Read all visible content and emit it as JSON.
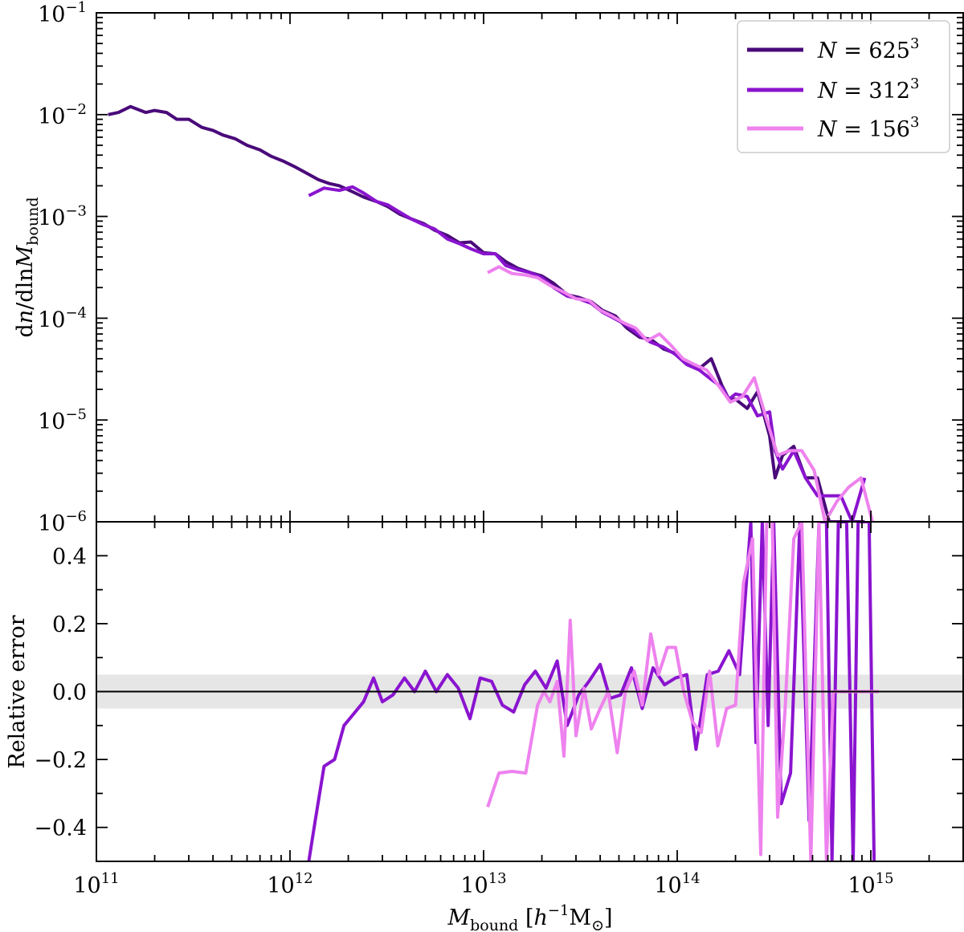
{
  "chart_data": [
    {
      "type": "line",
      "panel": "top",
      "ylabel_parts": [
        "d",
        "n",
        "/dln",
        "M",
        "bound"
      ],
      "xscale": "log",
      "yscale": "log",
      "xlim": [
        100000000000.0,
        3000000000000000.0
      ],
      "ylim": [
        1e-06,
        0.1
      ],
      "y_ticks": [
        {
          "base": "10",
          "exp": "−1"
        },
        {
          "base": "10",
          "exp": "−2"
        },
        {
          "base": "10",
          "exp": "−3"
        },
        {
          "base": "10",
          "exp": "−4"
        },
        {
          "base": "10",
          "exp": "−5"
        },
        {
          "base": "10",
          "exp": "−6"
        }
      ],
      "legend_position": "top-right",
      "series": [
        {
          "name_parts": [
            "N",
            " = 625",
            "3"
          ],
          "color": "#4a0a7a",
          "x": [
            115000000000.0,
            130000000000.0,
            150000000000.0,
            180000000000.0,
            200000000000.0,
            230000000000.0,
            260000000000.0,
            300000000000.0,
            350000000000.0,
            400000000000.0,
            450000000000.0,
            520000000000.0,
            600000000000.0,
            700000000000.0,
            800000000000.0,
            920000000000.0,
            1050000000000.0,
            1200000000000.0,
            1400000000000.0,
            1600000000000.0,
            1800000000000.0,
            2100000000000.0,
            2400000000000.0,
            2800000000000.0,
            3200000000000.0,
            3700000000000.0,
            4200000000000.0,
            4900000000000.0,
            5600000000000.0,
            6500000000000.0,
            7500000000000.0,
            8600000000000.0,
            10000000000000.0,
            11500000000000.0,
            13000000000000.0,
            15000000000000.0,
            17500000000000.0,
            20000000000000.0,
            23000000000000.0,
            27000000000000.0,
            31000000000000.0,
            36000000000000.0,
            41000000000000.0,
            48000000000000.0,
            55000000000000.0,
            64000000000000.0,
            73000000000000.0,
            85000000000000.0,
            98000000000000.0,
            112000000000000.0,
            130000000000000.0,
            150000000000000.0,
            170000000000000.0,
            185000000000000.0,
            200000000000000.0,
            230000000000000.0,
            260000000000000.0,
            300000000000000.0,
            320000000000000.0,
            350000000000000.0,
            400000000000000.0,
            460000000000000.0,
            530000000000000.0,
            610000000000000.0,
            700000000000000.0,
            800000000000000.0,
            930000000000000.0
          ],
          "y": [
            0.01,
            0.0105,
            0.012,
            0.0105,
            0.011,
            0.0105,
            0.009,
            0.009,
            0.0075,
            0.007,
            0.0063,
            0.0058,
            0.005,
            0.0045,
            0.0039,
            0.0035,
            0.0031,
            0.0027,
            0.0023,
            0.0021,
            0.002,
            0.00175,
            0.00155,
            0.0014,
            0.00125,
            0.00105,
            0.00095,
            0.00085,
            0.00073,
            0.00065,
            0.00055,
            0.00056,
            0.00044,
            0.00043,
            0.00036,
            0.00031,
            0.00028,
            0.00026,
            0.00022,
            0.00017,
            0.00016,
            0.000145,
            0.00012,
            0.000105,
            8e-05,
            6.5e-05,
            6.2e-05,
            5e-05,
            4.5e-05,
            3.6e-05,
            3.2e-05,
            4e-05,
            2.2e-05,
            1.6e-05,
            1.6e-05,
            1.3e-05,
            1.9e-05,
            7e-06,
            2.7e-06,
            4.5e-06,
            5.5e-06,
            2.7e-06,
            2.7e-06,
            1e-06,
            1e-06,
            1e-06,
            1e-06
          ]
        },
        {
          "name_parts": [
            "N",
            " = 312",
            "3"
          ],
          "color": "#8a14cf",
          "x": [
            1250000000000.0,
            1500000000000.0,
            1800000000000.0,
            2100000000000.0,
            2400000000000.0,
            2800000000000.0,
            3200000000000.0,
            3700000000000.0,
            4200000000000.0,
            4900000000000.0,
            5600000000000.0,
            6500000000000.0,
            7500000000000.0,
            8600000000000.0,
            10000000000000.0,
            11500000000000.0,
            13000000000000.0,
            15000000000000.0,
            17500000000000.0,
            20000000000000.0,
            23000000000000.0,
            27000000000000.0,
            31000000000000.0,
            36000000000000.0,
            41000000000000.0,
            48000000000000.0,
            55000000000000.0,
            64000000000000.0,
            73000000000000.0,
            85000000000000.0,
            98000000000000.0,
            112000000000000.0,
            130000000000000.0,
            150000000000000.0,
            170000000000000.0,
            185000000000000.0,
            200000000000000.0,
            230000000000000.0,
            260000000000000.0,
            300000000000000.0,
            320000000000000.0,
            350000000000000.0,
            400000000000000.0,
            460000000000000.0,
            530000000000000.0,
            610000000000000.0,
            700000000000000.0,
            800000000000000.0,
            930000000000000.0
          ],
          "y": [
            0.0016,
            0.0019,
            0.0018,
            0.00195,
            0.0017,
            0.0014,
            0.0013,
            0.0011,
            0.00095,
            0.00083,
            0.00075,
            0.0006,
            0.00054,
            0.00048,
            0.00043,
            0.00043,
            0.00033,
            0.0003,
            0.00028,
            0.00025,
            0.0002,
            0.000165,
            0.000155,
            0.00014,
            0.000115,
            9.8e-05,
            8.5e-05,
            6.8e-05,
            5.8e-05,
            5.2e-05,
            4.4e-05,
            3.5e-05,
            3.1e-05,
            2.5e-05,
            2.1e-05,
            1.6e-05,
            1.8e-05,
            1.7e-05,
            1.1e-05,
            1.2e-05,
            5e-06,
            3.3e-06,
            5e-06,
            2.7e-06,
            1.8e-06,
            1.8e-06,
            1.8e-06,
            1e-06,
            2.7e-06
          ]
        },
        {
          "name_parts": [
            "N",
            " = 156",
            "3"
          ],
          "color": "#ee82ee",
          "x": [
            10500000000000.0,
            12000000000000.0,
            14000000000000.0,
            16500000000000.0,
            19000000000000.0,
            22000000000000.0,
            26000000000000.0,
            30000000000000.0,
            35000000000000.0,
            40000000000000.0,
            46000000000000.0,
            53000000000000.0,
            61000000000000.0,
            70000000000000.0,
            81000000000000.0,
            93000000000000.0,
            107000000000000.0,
            123000000000000.0,
            142000000000000.0,
            163000000000000.0,
            188000000000000.0,
            217000000000000.0,
            250000000000000.0,
            290000000000000.0,
            330000000000000.0,
            380000000000000.0,
            440000000000000.0,
            510000000000000.0,
            580000000000000.0,
            670000000000000.0,
            770000000000000.0,
            890000000000000.0,
            1020000000000000.0
          ],
          "y": [
            0.00028,
            0.00032,
            0.000275,
            0.000265,
            0.00025,
            0.00021,
            0.00018,
            0.000155,
            0.00015,
            0.00012,
            0.000105,
            9e-05,
            8e-05,
            6e-05,
            7e-05,
            5.4e-05,
            4e-05,
            3.5e-05,
            3.1e-05,
            2.2e-05,
            1.5e-05,
            1.7e-05,
            2.6e-05,
            1e-05,
            4.5e-06,
            5e-06,
            5e-06,
            3.2e-06,
            1e-06,
            1.6e-06,
            2.2e-06,
            2.7e-06,
            1e-06
          ]
        }
      ]
    },
    {
      "type": "line",
      "panel": "bottom",
      "ylabel": "Relative error",
      "xlabel_parts": [
        "M",
        "bound",
        " [",
        "h",
        "−1",
        "M",
        "⊙",
        "]"
      ],
      "xscale": "log",
      "xlim": [
        100000000000.0,
        3000000000000000.0
      ],
      "ylim": [
        -0.5,
        0.5
      ],
      "x_ticks": [
        {
          "base": "10",
          "exp": "11"
        },
        {
          "base": "10",
          "exp": "12"
        },
        {
          "base": "10",
          "exp": "13"
        },
        {
          "base": "10",
          "exp": "14"
        },
        {
          "base": "10",
          "exp": "15"
        }
      ],
      "y_ticks": [
        "0.4",
        "0.2",
        "0.0",
        "−0.2",
        "−0.4"
      ],
      "reference_line": 0,
      "shaded_band": [
        -0.05,
        0.05
      ],
      "band_color": "#e6e6e6",
      "series": [
        {
          "color": "#8a14cf",
          "x": [
            1250000000000.0,
            1350000000000.0,
            1500000000000.0,
            1700000000000.0,
            1900000000000.0,
            2100000000000.0,
            2400000000000.0,
            2700000000000.0,
            3000000000000.0,
            3400000000000.0,
            3900000000000.0,
            4400000000000.0,
            5000000000000.0,
            5700000000000.0,
            6500000000000.0,
            7400000000000.0,
            8500000000000.0,
            9600000000000.0,
            11000000000000.0,
            12500000000000.0,
            14300000000000.0,
            16300000000000.0,
            18500000000000.0,
            21000000000000.0,
            24000000000000.0,
            27000000000000.0,
            31000000000000.0,
            35000000000000.0,
            40000000000000.0,
            45000000000000.0,
            51000000000000.0,
            58000000000000.0,
            66000000000000.0,
            75000000000000.0,
            86000000000000.0,
            98000000000000.0,
            112000000000000.0,
            125000000000000.0,
            143000000000000.0,
            163000000000000.0,
            185000000000000.0,
            210000000000000.0,
            240000000000000.0,
            255000000000000.0,
            275000000000000.0,
            295000000000000.0,
            315000000000000.0,
            345000000000000.0,
            385000000000000.0,
            430000000000000.0,
            480000000000000.0,
            540000000000000.0,
            590000000000000.0,
            630000000000000.0,
            680000000000000.0,
            750000000000000.0,
            810000000000000.0,
            860000000000000.0,
            920000000000000.0,
            980000000000000.0,
            1040000000000000.0
          ],
          "y": [
            -0.5,
            -0.38,
            -0.22,
            -0.2,
            -0.1,
            -0.07,
            -0.03,
            0.04,
            -0.03,
            -0.01,
            0.04,
            0.0,
            0.06,
            0.0,
            0.05,
            0.01,
            -0.08,
            0.04,
            0.03,
            -0.04,
            -0.06,
            0.02,
            0.06,
            0.01,
            0.09,
            -0.1,
            -0.01,
            0.03,
            0.08,
            -0.02,
            -0.01,
            0.07,
            -0.05,
            0.07,
            0.02,
            0.04,
            0.05,
            -0.17,
            0.05,
            0.06,
            0.12,
            0.05,
            0.5,
            -0.15,
            0.5,
            -0.1,
            0.5,
            -0.33,
            -0.24,
            0.5,
            -0.38,
            0.5,
            0.5,
            -0.5,
            0.5,
            0.5,
            -0.5,
            0.5,
            0.5,
            0.5,
            -0.5
          ]
        },
        {
          "color": "#ee82ee",
          "x": [
            10500000000000.0,
            12000000000000.0,
            14000000000000.0,
            16500000000000.0,
            19000000000000.0,
            20500000000000.0,
            22000000000000.0,
            24000000000000.0,
            26000000000000.0,
            28000000000000.0,
            30000000000000.0,
            33000000000000.0,
            36000000000000.0,
            40000000000000.0,
            44000000000000.0,
            49000000000000.0,
            54000000000000.0,
            60000000000000.0,
            66000000000000.0,
            73000000000000.0,
            80000000000000.0,
            89000000000000.0,
            98000000000000.0,
            108000000000000.0,
            120000000000000.0,
            133000000000000.0,
            147000000000000.0,
            162000000000000.0,
            180000000000000.0,
            200000000000000.0,
            220000000000000.0,
            245000000000000.0,
            270000000000000.0,
            290000000000000.0,
            310000000000000.0,
            330000000000000.0,
            360000000000000.0,
            400000000000000.0,
            440000000000000.0,
            490000000000000.0,
            540000000000000.0,
            590000000000000.0,
            640000000000000.0,
            700000000000000.0,
            770000000000000.0,
            840000000000000.0,
            920000000000000.0,
            1000000000000000.0,
            1100000000000000.0
          ],
          "y": [
            -0.34,
            -0.24,
            -0.235,
            -0.24,
            -0.04,
            0.0,
            -0.03,
            0.03,
            -0.19,
            0.21,
            -0.13,
            0.01,
            -0.11,
            -0.05,
            0.0,
            -0.18,
            0.0,
            0.06,
            -0.04,
            0.17,
            0.05,
            0.13,
            0.13,
            0.0,
            -0.09,
            -0.12,
            0.06,
            -0.16,
            -0.05,
            -0.04,
            0.32,
            0.45,
            -0.48,
            0.5,
            0.5,
            -0.37,
            -0.06,
            0.45,
            0.5,
            -0.5,
            0.5,
            -0.5,
            0.0,
            0.0,
            0.0,
            0.0,
            0.0,
            0.0,
            0.0
          ]
        }
      ]
    }
  ]
}
